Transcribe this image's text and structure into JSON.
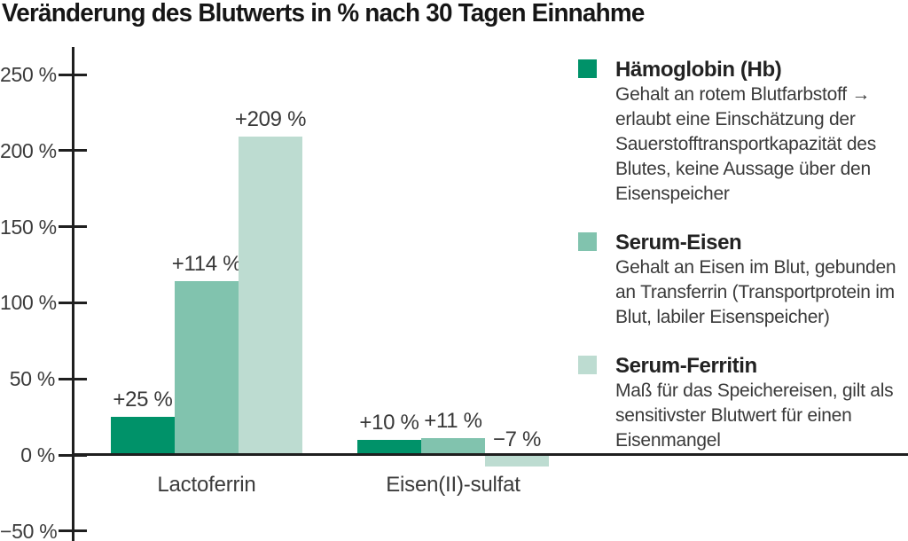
{
  "title": "Veränderung des Blutwerts in % nach 30 Tagen Einnahme",
  "colors": {
    "haemoglobin": "#009269",
    "serum_eisen": "#81c3ae",
    "serum_ferritin": "#bddcd1",
    "axis": "#1f1f1f"
  },
  "chart_data": {
    "type": "bar",
    "title": "Veränderung des Blutwerts in % nach 30 Tagen Einnahme",
    "categories": [
      "Lactoferrin",
      "Eisen(II)-sulfat"
    ],
    "series": [
      {
        "name": "Hämoglobin (Hb)",
        "color": "#009269",
        "values": [
          25,
          10
        ],
        "labels": [
          "+25 %",
          "+10 %"
        ],
        "description": "Gehalt an rotem Blutfarbstoff →\nerlaubt eine Einschätzung der\nSauerstofftransportkapazität des\nBlutes, keine Aussage über den\nEisenspeicher"
      },
      {
        "name": "Serum-Eisen",
        "color": "#81c3ae",
        "values": [
          114,
          11
        ],
        "labels": [
          "+114 %",
          "+11 %"
        ],
        "description": "Gehalt an Eisen im Blut, gebunden\nan Transferrin (Transportprotein im\nBlut, labiler Eisenspeicher)"
      },
      {
        "name": "Serum-Ferritin",
        "color": "#bddcd1",
        "values": [
          209,
          -7
        ],
        "labels": [
          "+209 %",
          "−7 %"
        ],
        "description": "Maß für das Speichereisen, gilt als\nsensitivster Blutwert für einen\nEisenmangel"
      }
    ],
    "xlabel": "",
    "ylabel": "",
    "ylim": [
      -50,
      250
    ],
    "ytick_values": [
      250,
      200,
      150,
      100,
      50,
      0,
      -50
    ],
    "ytick_labels": [
      "250 %",
      "200 %",
      "150 %",
      "100 %",
      "50 %",
      "0 %",
      "−50 %"
    ],
    "grid": false,
    "legend_position": "right"
  }
}
